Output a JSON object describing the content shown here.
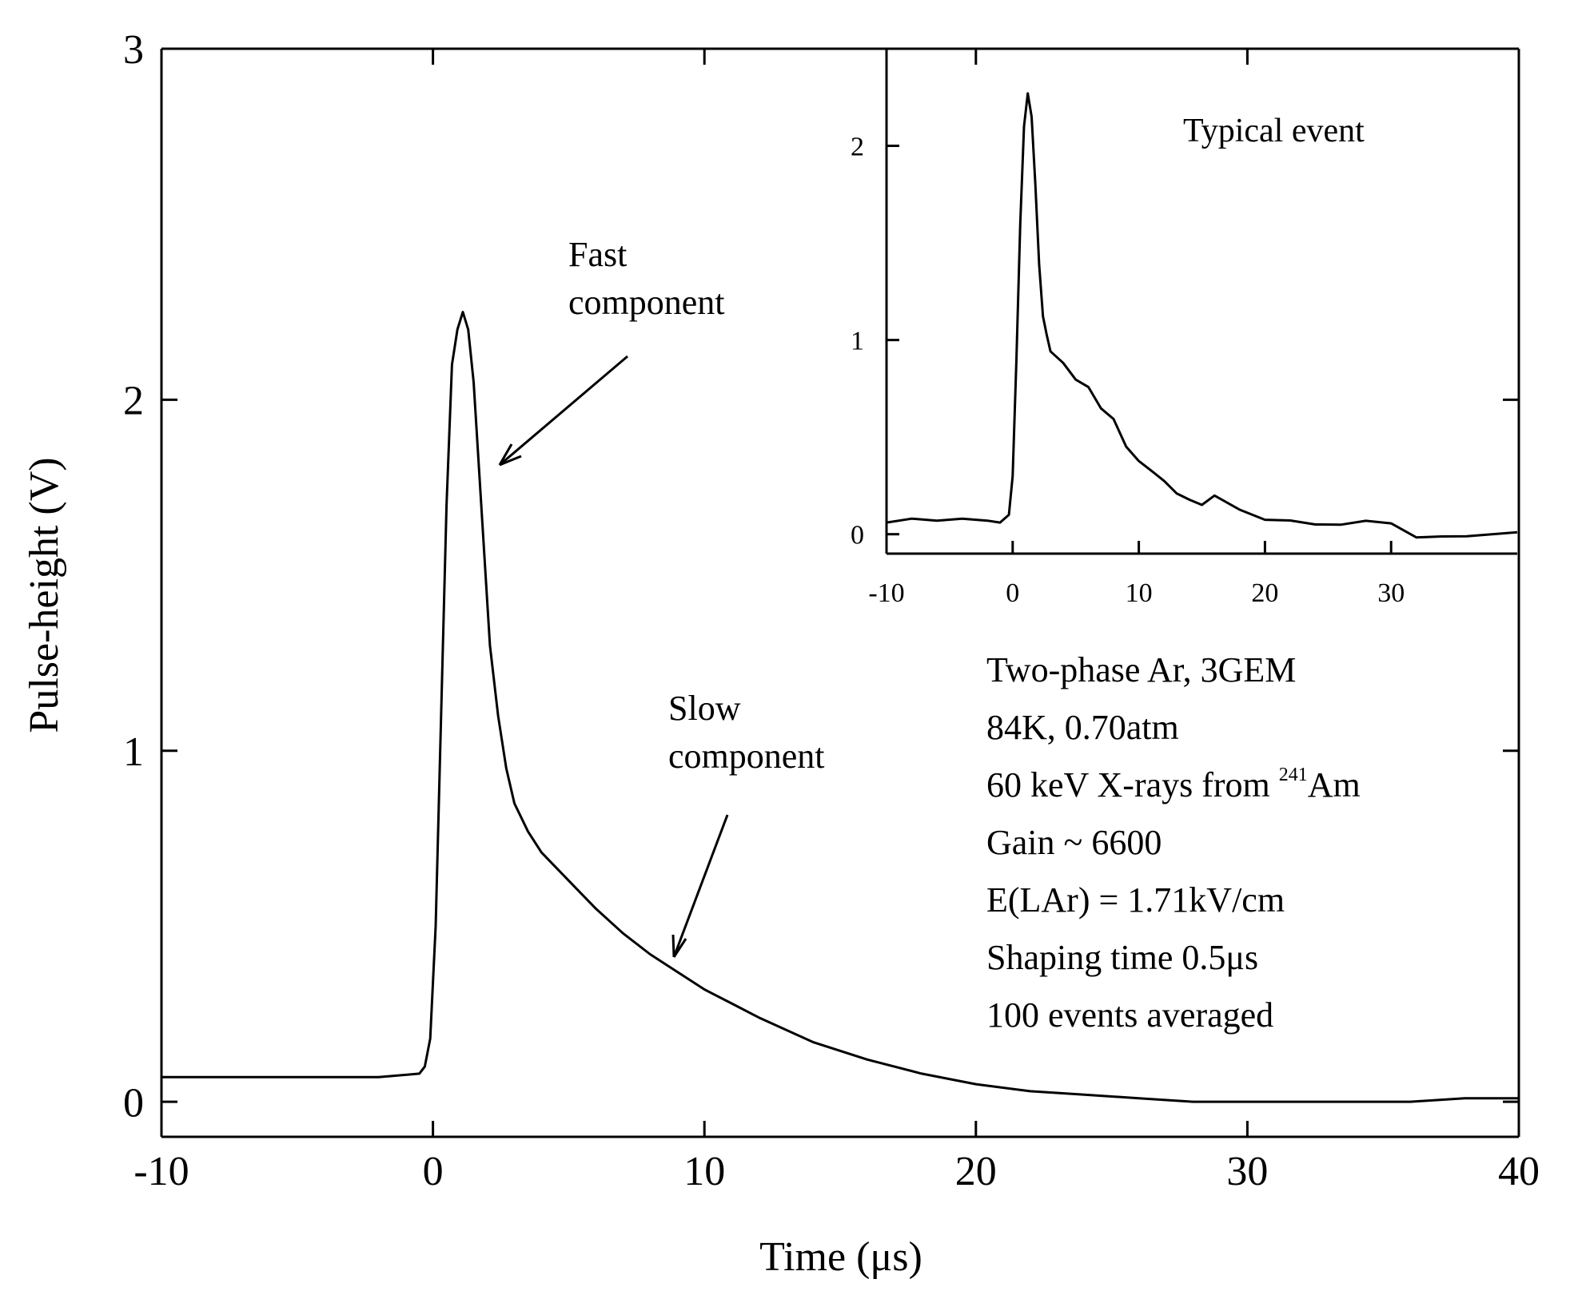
{
  "chart_data": [
    {
      "type": "line",
      "xlabel": "Time (μs)",
      "ylabel": "Pulse-height (V)",
      "xlim": [
        -10,
        40
      ],
      "ylim": [
        -0.1,
        3
      ],
      "xticks": [
        -10,
        0,
        10,
        20,
        30,
        40
      ],
      "xtick_labels": [
        "-10",
        "0",
        "10",
        "20",
        "30",
        "40"
      ],
      "yticks": [
        0,
        1,
        2,
        3
      ],
      "ytick_labels": [
        "0",
        "1",
        "2",
        "3"
      ],
      "series": [
        {
          "name": "100 events averaged",
          "x": [
            -10,
            -8,
            -6,
            -4,
            -2,
            -0.5,
            -0.3,
            -0.1,
            0.1,
            0.3,
            0.5,
            0.7,
            0.9,
            1.1,
            1.3,
            1.5,
            1.7,
            1.9,
            2.1,
            2.4,
            2.7,
            3.0,
            3.5,
            4,
            5,
            6,
            7,
            8,
            9,
            10,
            11,
            12,
            14,
            16,
            18,
            20,
            22,
            24,
            26,
            28,
            30,
            32,
            34,
            36,
            38,
            40
          ],
          "y": [
            0.07,
            0.07,
            0.07,
            0.07,
            0.07,
            0.08,
            0.1,
            0.18,
            0.5,
            1.1,
            1.7,
            2.1,
            2.2,
            2.25,
            2.2,
            2.05,
            1.8,
            1.55,
            1.3,
            1.1,
            0.95,
            0.85,
            0.77,
            0.71,
            0.63,
            0.55,
            0.48,
            0.42,
            0.37,
            0.32,
            0.28,
            0.24,
            0.17,
            0.12,
            0.08,
            0.05,
            0.03,
            0.02,
            0.01,
            0.0,
            0.0,
            0.0,
            0.0,
            0.0,
            0.01,
            0.01
          ]
        }
      ],
      "annotations": {
        "fast": [
          "Fast",
          "component"
        ],
        "slow": [
          "Slow",
          "component"
        ],
        "info": [
          "Two-phase Ar, 3GEM",
          "84K, 0.70atm",
          "60 keV X-rays from ",
          "Gain ~ 6600",
          "E(LAr) = 1.71kV/cm",
          "Shaping time 0.5μs",
          "100 events averaged"
        ],
        "isotope_superscript": "241",
        "isotope_symbol": "Am"
      }
    },
    {
      "type": "line",
      "title": "Typical event",
      "xlim": [
        -10,
        40
      ],
      "ylim": [
        -0.1,
        2.5
      ],
      "xticks": [
        -10,
        0,
        10,
        20,
        30
      ],
      "xtick_labels": [
        "-10",
        "0",
        "10",
        "20",
        "30"
      ],
      "yticks": [
        0,
        1,
        2
      ],
      "ytick_labels": [
        "0",
        "1",
        "2"
      ],
      "series": [
        {
          "name": "Typical event",
          "x": [
            -10,
            -8,
            -6,
            -4,
            -2,
            -1,
            -0.3,
            0,
            0.3,
            0.6,
            0.9,
            1.2,
            1.5,
            1.8,
            2.1,
            2.4,
            2.7,
            3,
            4,
            5,
            6,
            7,
            8,
            9,
            10,
            11,
            12,
            13,
            14,
            15,
            16,
            18,
            20,
            22,
            24,
            26,
            28,
            30,
            32,
            34,
            36,
            38,
            40
          ],
          "y": [
            0.06,
            0.08,
            0.07,
            0.08,
            0.07,
            0.06,
            0.1,
            0.3,
            0.9,
            1.6,
            2.1,
            2.27,
            2.15,
            1.8,
            1.4,
            1.1,
            0.98,
            0.92,
            0.85,
            0.78,
            0.72,
            0.62,
            0.56,
            0.48,
            0.42,
            0.36,
            0.3,
            0.26,
            0.22,
            0.18,
            0.15,
            0.09,
            0.06,
            0.05,
            0.04,
            0.02,
            0.02,
            0.01,
            0.01,
            0.0,
            0.01,
            0.0,
            0.01
          ]
        }
      ]
    }
  ]
}
